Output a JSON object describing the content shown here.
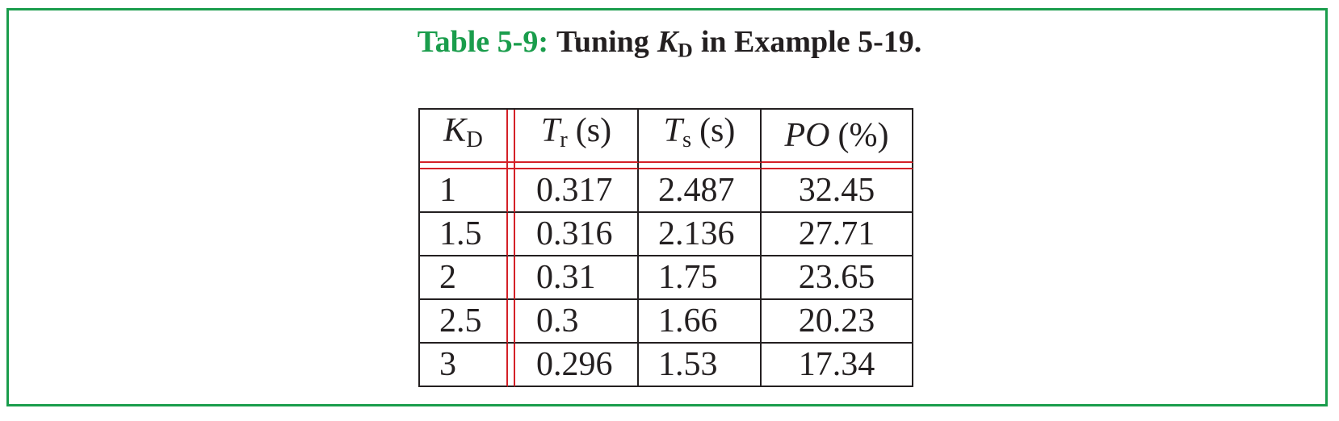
{
  "caption": {
    "label": "Table 5-9:",
    "text_before": "Tuning",
    "symbol": "K",
    "symbol_sub": "D",
    "text_after": "in Example 5-19."
  },
  "table": {
    "header": [
      {
        "symbol": "K",
        "sub": "D"
      },
      {
        "symbol": "T",
        "sub": "r",
        "unit": "(s)"
      },
      {
        "symbol": "T",
        "sub": "s",
        "unit": "(s)"
      },
      {
        "symbol": "PO",
        "unit": "(%)"
      }
    ],
    "rows": [
      [
        1,
        0.317,
        2.487,
        32.45
      ],
      [
        1.5,
        0.316,
        2.136,
        27.71
      ],
      [
        2,
        0.31,
        1.75,
        23.65
      ],
      [
        2.5,
        0.3,
        1.66,
        20.23
      ],
      [
        3,
        0.296,
        1.53,
        17.34
      ]
    ]
  }
}
